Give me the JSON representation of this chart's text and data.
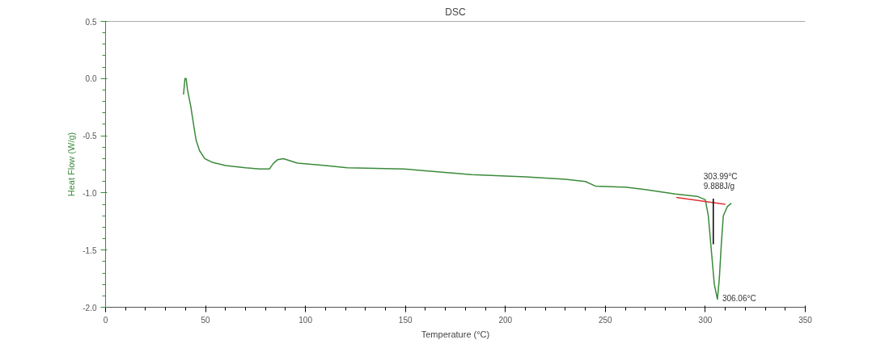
{
  "chart_data": {
    "type": "line",
    "title": "DSC",
    "xlabel": "Temperature (°C)",
    "ylabel": "Heat Flow (W/g)",
    "xlim": [
      0,
      350
    ],
    "xticks": [
      0,
      50,
      100,
      150,
      200,
      250,
      300,
      350
    ],
    "ylim": [
      -2.0,
      0.5
    ],
    "yticks": [
      {
        "value": -2.0,
        "label": "-2.0"
      },
      {
        "value": -1.5,
        "label": "-1.5"
      },
      {
        "value": -1.0,
        "label": "-1.0"
      },
      {
        "value": -0.5,
        "label": "-0.5"
      },
      {
        "value": 0.0,
        "label": "0.0"
      },
      {
        "value": 0.5,
        "label": "0.5"
      }
    ],
    "grid": false,
    "marker": "none",
    "line_style": "solid",
    "series": [
      {
        "color": "#3a8a3a",
        "x": [
          39.0,
          39.7,
          40.3,
          41.0,
          42.6,
          44.0,
          45.3,
          47.0,
          49.6,
          53,
          60,
          70,
          77,
          82,
          84,
          86,
          89,
          96,
          110,
          121,
          149,
          183,
          210,
          230,
          240,
          245,
          260,
          270,
          285,
          296,
          300,
          301.5,
          303,
          304.5,
          306.06,
          307,
          308,
          309,
          311,
          313
        ],
        "values": [
          -0.14,
          0.0,
          0.0,
          -0.1,
          -0.24,
          -0.4,
          -0.54,
          -0.63,
          -0.7,
          -0.73,
          -0.76,
          -0.78,
          -0.79,
          -0.79,
          -0.74,
          -0.71,
          -0.7,
          -0.74,
          -0.76,
          -0.78,
          -0.79,
          -0.84,
          -0.86,
          -0.88,
          -0.9,
          -0.94,
          -0.95,
          -0.97,
          -1.01,
          -1.03,
          -1.06,
          -1.2,
          -1.5,
          -1.8,
          -1.93,
          -1.75,
          -1.45,
          -1.2,
          -1.12,
          -1.09
        ]
      },
      {
        "color": "#e03030",
        "x": [
          285.5,
          310
        ],
        "values": [
          -1.04,
          -1.1
        ]
      },
      {
        "color": "#000000",
        "x": [
          303.99,
          303.99
        ],
        "values": [
          -1.05,
          -1.45
        ]
      }
    ],
    "annotations": [
      {
        "text": "303.99°C",
        "x": 303.99,
        "y": -1.05
      },
      "9.888J/g",
      {
        "text": "306.06°C",
        "x": 306.06,
        "y": -1.93
      }
    ]
  }
}
